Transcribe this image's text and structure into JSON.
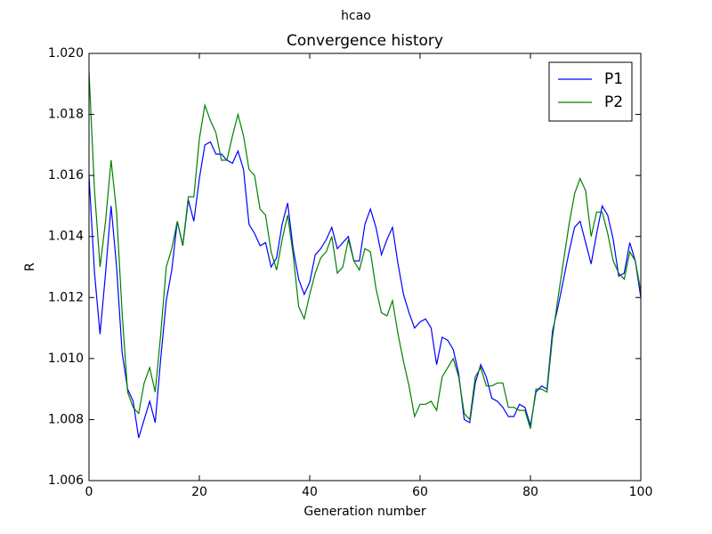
{
  "chart_data": {
    "type": "line",
    "suptitle": "hcao",
    "title": "Convergence history",
    "xlabel": "Generation number",
    "ylabel": "R",
    "x": [
      0,
      1,
      2,
      3,
      4,
      5,
      6,
      7,
      8,
      9,
      10,
      11,
      12,
      13,
      14,
      15,
      16,
      17,
      18,
      19,
      20,
      21,
      22,
      23,
      24,
      25,
      26,
      27,
      28,
      29,
      30,
      31,
      32,
      33,
      34,
      35,
      36,
      37,
      38,
      39,
      40,
      41,
      42,
      43,
      44,
      45,
      46,
      47,
      48,
      49,
      50,
      51,
      52,
      53,
      54,
      55,
      56,
      57,
      58,
      59,
      60,
      61,
      62,
      63,
      64,
      65,
      66,
      67,
      68,
      69,
      70,
      71,
      72,
      73,
      74,
      75,
      76,
      77,
      78,
      79,
      80,
      81,
      82,
      83,
      84,
      85,
      86,
      87,
      88,
      89,
      90,
      91,
      92,
      93,
      94,
      95,
      96,
      97,
      98,
      99,
      100
    ],
    "series": [
      {
        "name": "P1",
        "color": "#0000ff",
        "values": [
          1.016,
          1.0128,
          1.0108,
          1.0128,
          1.015,
          1.013,
          1.0102,
          1.009,
          1.0086,
          1.0074,
          1.008,
          1.0086,
          1.0079,
          1.01,
          1.0119,
          1.0129,
          1.0145,
          1.0137,
          1.0152,
          1.0145,
          1.0159,
          1.017,
          1.0171,
          1.0167,
          1.0167,
          1.0165,
          1.0164,
          1.0168,
          1.0162,
          1.0144,
          1.0141,
          1.0137,
          1.0138,
          1.013,
          1.0133,
          1.0144,
          1.0151,
          1.0136,
          1.0126,
          1.0121,
          1.0125,
          1.0134,
          1.0136,
          1.0139,
          1.0143,
          1.0136,
          1.0138,
          1.014,
          1.0132,
          1.0132,
          1.0144,
          1.0149,
          1.0143,
          1.0134,
          1.0139,
          1.0143,
          1.0131,
          1.0121,
          1.0115,
          1.011,
          1.0112,
          1.0113,
          1.011,
          1.0098,
          1.0107,
          1.0106,
          1.0103,
          1.0095,
          1.008,
          1.0079,
          1.0092,
          1.0098,
          1.0094,
          1.0087,
          1.0086,
          1.0084,
          1.0081,
          1.0081,
          1.0085,
          1.0084,
          1.0078,
          1.0089,
          1.0091,
          1.009,
          1.0109,
          1.0117,
          1.0126,
          1.0135,
          1.0143,
          1.0145,
          1.0138,
          1.0131,
          1.0141,
          1.015,
          1.0147,
          1.0139,
          1.0127,
          1.0128,
          1.0138,
          1.0132,
          1.012
        ]
      },
      {
        "name": "P2",
        "color": "#008000",
        "values": [
          1.0194,
          1.0155,
          1.013,
          1.0145,
          1.0165,
          1.0148,
          1.0115,
          1.0089,
          1.0084,
          1.0082,
          1.0092,
          1.0097,
          1.0089,
          1.0108,
          1.013,
          1.0136,
          1.0145,
          1.0137,
          1.0153,
          1.0153,
          1.0172,
          1.0183,
          1.0178,
          1.0174,
          1.0165,
          1.0165,
          1.0173,
          1.018,
          1.0173,
          1.0162,
          1.016,
          1.0149,
          1.0147,
          1.0135,
          1.0129,
          1.0139,
          1.0147,
          1.0134,
          1.0117,
          1.0113,
          1.0121,
          1.0128,
          1.0133,
          1.0135,
          1.014,
          1.0128,
          1.013,
          1.0139,
          1.0132,
          1.0129,
          1.0136,
          1.0135,
          1.0123,
          1.0115,
          1.0114,
          1.0119,
          1.0108,
          1.0099,
          1.0091,
          1.0081,
          1.0085,
          1.0085,
          1.0086,
          1.0083,
          1.0094,
          1.0097,
          1.01,
          1.0094,
          1.0082,
          1.008,
          1.0094,
          1.0097,
          1.0091,
          1.0091,
          1.0092,
          1.0092,
          1.0084,
          1.0084,
          1.0083,
          1.0083,
          1.0077,
          1.009,
          1.009,
          1.0089,
          1.0107,
          1.012,
          1.0132,
          1.0144,
          1.0154,
          1.0159,
          1.0155,
          1.014,
          1.0148,
          1.0148,
          1.0141,
          1.0132,
          1.0128,
          1.0126,
          1.0135,
          1.0132,
          1.0122
        ]
      }
    ],
    "xlim": [
      0,
      100
    ],
    "xticks": [
      0,
      20,
      40,
      60,
      80,
      100
    ],
    "ylim": [
      1.006,
      1.02
    ],
    "yticks": [
      {
        "value": 1.006,
        "label": "1.006"
      },
      {
        "value": 1.008,
        "label": "1.008"
      },
      {
        "value": 1.01,
        "label": "1.010"
      },
      {
        "value": 1.012,
        "label": "1.012"
      },
      {
        "value": 1.014,
        "label": "1.014"
      },
      {
        "value": 1.016,
        "label": "1.016"
      },
      {
        "value": 1.018,
        "label": "1.018"
      },
      {
        "value": 1.02,
        "label": "1.020"
      }
    ],
    "grid": false,
    "legend": "upper right"
  }
}
